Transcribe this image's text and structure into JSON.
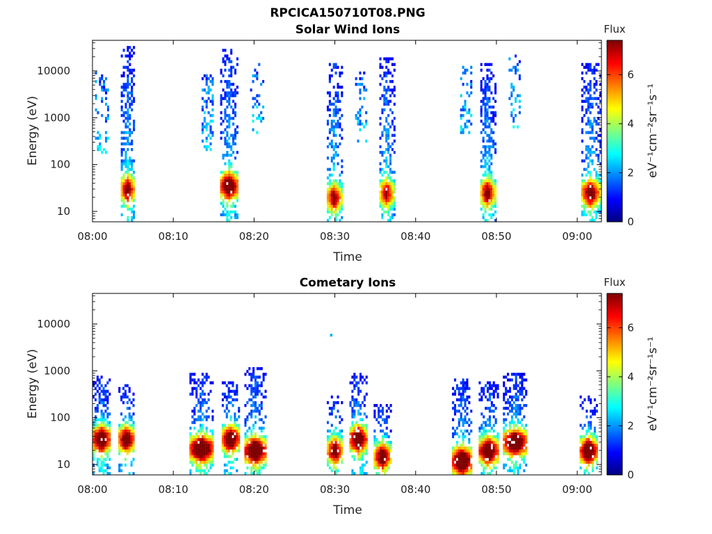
{
  "figure": {
    "file_title": "RPCICA150710T08.PNG"
  },
  "colors": {
    "colormap": [
      "#00007f",
      "#0000ff",
      "#007fff",
      "#00ffff",
      "#7fff7f",
      "#ffff00",
      "#ff7f00",
      "#ff0000",
      "#7f0000"
    ]
  },
  "chart_data": [
    {
      "type": "heatmap",
      "title": "Solar Wind Ions",
      "xlabel": "Time",
      "ylabel": "Energy (eV)",
      "x_ticks": [
        "08:00",
        "08:10",
        "08:20",
        "08:30",
        "08:40",
        "08:50",
        "09:00"
      ],
      "x_tick_minutes": [
        0,
        10,
        20,
        30,
        40,
        50,
        60
      ],
      "xlim_minutes": [
        0,
        63
      ],
      "y_scale": "log",
      "ylim": [
        6,
        45000
      ],
      "y_ticks": [
        "10",
        "100",
        "1000",
        "10000"
      ],
      "y_tick_values": [
        10,
        100,
        1000,
        10000
      ],
      "colorbar": {
        "title": "Flux",
        "label": "eV⁻¹cm⁻²sr⁻¹s⁻¹",
        "ticks": [
          "0",
          "2",
          "4",
          "6"
        ],
        "tick_values": [
          0,
          2,
          4,
          6
        ],
        "range": [
          0,
          7.4
        ]
      },
      "bursts": [
        {
          "t0": 0.3,
          "t1": 2.0,
          "e_low": 150,
          "e_high": 10000,
          "peak_e": 0,
          "peak_flux": 0,
          "density": 0.22
        },
        {
          "t0": 3.5,
          "t1": 5.2,
          "e_low": 6,
          "e_high": 33000,
          "peak_e": 30,
          "peak_flux": 5.6,
          "density": 0.55
        },
        {
          "t0": 13.5,
          "t1": 15.0,
          "e_low": 200,
          "e_high": 8000,
          "peak_e": 0,
          "peak_flux": 0,
          "density": 0.35
        },
        {
          "t0": 15.8,
          "t1": 18.0,
          "e_low": 6,
          "e_high": 30000,
          "peak_e": 35,
          "peak_flux": 6.8,
          "density": 0.55
        },
        {
          "t0": 19.5,
          "t1": 21.2,
          "e_low": 400,
          "e_high": 15000,
          "peak_e": 0,
          "peak_flux": 0,
          "density": 0.2
        },
        {
          "t0": 29.0,
          "t1": 30.8,
          "e_low": 6,
          "e_high": 15000,
          "peak_e": 20,
          "peak_flux": 5.2,
          "density": 0.5
        },
        {
          "t0": 32.5,
          "t1": 33.8,
          "e_low": 300,
          "e_high": 10000,
          "peak_e": 0,
          "peak_flux": 0,
          "density": 0.25
        },
        {
          "t0": 35.5,
          "t1": 37.3,
          "e_low": 6,
          "e_high": 20000,
          "peak_e": 25,
          "peak_flux": 5.0,
          "density": 0.5
        },
        {
          "t0": 45.5,
          "t1": 46.8,
          "e_low": 400,
          "e_high": 15000,
          "peak_e": 0,
          "peak_flux": 0,
          "density": 0.25
        },
        {
          "t0": 48.0,
          "t1": 49.8,
          "e_low": 6,
          "e_high": 15000,
          "peak_e": 25,
          "peak_flux": 5.5,
          "density": 0.55
        },
        {
          "t0": 51.5,
          "t1": 53.0,
          "e_low": 500,
          "e_high": 23000,
          "peak_e": 0,
          "peak_flux": 0,
          "density": 0.25
        },
        {
          "t0": 60.5,
          "t1": 62.8,
          "e_low": 6,
          "e_high": 15000,
          "peak_e": 25,
          "peak_flux": 5.8,
          "density": 0.5
        }
      ]
    },
    {
      "type": "heatmap",
      "title": "Cometary Ions",
      "xlabel": "Time",
      "ylabel": "Energy (eV)",
      "x_ticks": [
        "08:00",
        "08:10",
        "08:20",
        "08:30",
        "08:40",
        "08:50",
        "09:00"
      ],
      "x_tick_minutes": [
        0,
        10,
        20,
        30,
        40,
        50,
        60
      ],
      "xlim_minutes": [
        0,
        63
      ],
      "y_scale": "log",
      "ylim": [
        6,
        45000
      ],
      "y_ticks": [
        "10",
        "100",
        "1000",
        "10000"
      ],
      "y_tick_values": [
        10,
        100,
        1000,
        10000
      ],
      "colorbar": {
        "title": "Flux",
        "label": "eV⁻¹cm⁻²sr⁻¹s⁻¹",
        "ticks": [
          "0",
          "2",
          "4",
          "6"
        ],
        "tick_values": [
          0,
          2,
          4,
          6
        ],
        "range": [
          0,
          7.4
        ]
      },
      "bursts": [
        {
          "t0": 0.0,
          "t1": 2.2,
          "e_low": 6,
          "e_high": 800,
          "peak_e": 35,
          "peak_flux": 7.0,
          "density": 0.5
        },
        {
          "t0": 3.2,
          "t1": 5.2,
          "e_low": 6,
          "e_high": 500,
          "peak_e": 35,
          "peak_flux": 6.5,
          "density": 0.5
        },
        {
          "t0": 12.0,
          "t1": 15.0,
          "e_low": 6,
          "e_high": 900,
          "peak_e": 22,
          "peak_flux": 7.2,
          "density": 0.5
        },
        {
          "t0": 16.0,
          "t1": 18.2,
          "e_low": 6,
          "e_high": 600,
          "peak_e": 35,
          "peak_flux": 7.0,
          "density": 0.5
        },
        {
          "t0": 18.8,
          "t1": 21.5,
          "e_low": 6,
          "e_high": 1200,
          "peak_e": 20,
          "peak_flux": 7.2,
          "density": 0.55
        },
        {
          "t0": 29.0,
          "t1": 31.0,
          "e_low": 6,
          "e_high": 300,
          "peak_e": 20,
          "peak_flux": 6.0,
          "density": 0.45
        },
        {
          "t0": 31.8,
          "t1": 34.0,
          "e_low": 6,
          "e_high": 900,
          "peak_e": 35,
          "peak_flux": 7.0,
          "density": 0.5
        },
        {
          "t0": 34.8,
          "t1": 37.0,
          "e_low": 6,
          "e_high": 200,
          "peak_e": 15,
          "peak_flux": 6.0,
          "density": 0.5
        },
        {
          "t0": 44.5,
          "t1": 47.0,
          "e_low": 6,
          "e_high": 700,
          "peak_e": 12,
          "peak_flux": 7.2,
          "density": 0.55
        },
        {
          "t0": 47.8,
          "t1": 50.2,
          "e_low": 6,
          "e_high": 600,
          "peak_e": 20,
          "peak_flux": 7.0,
          "density": 0.55
        },
        {
          "t0": 50.8,
          "t1": 53.8,
          "e_low": 6,
          "e_high": 900,
          "peak_e": 30,
          "peak_flux": 7.2,
          "density": 0.55
        },
        {
          "t0": 60.3,
          "t1": 62.5,
          "e_low": 6,
          "e_high": 300,
          "peak_e": 20,
          "peak_flux": 7.0,
          "density": 0.45
        }
      ]
    }
  ]
}
